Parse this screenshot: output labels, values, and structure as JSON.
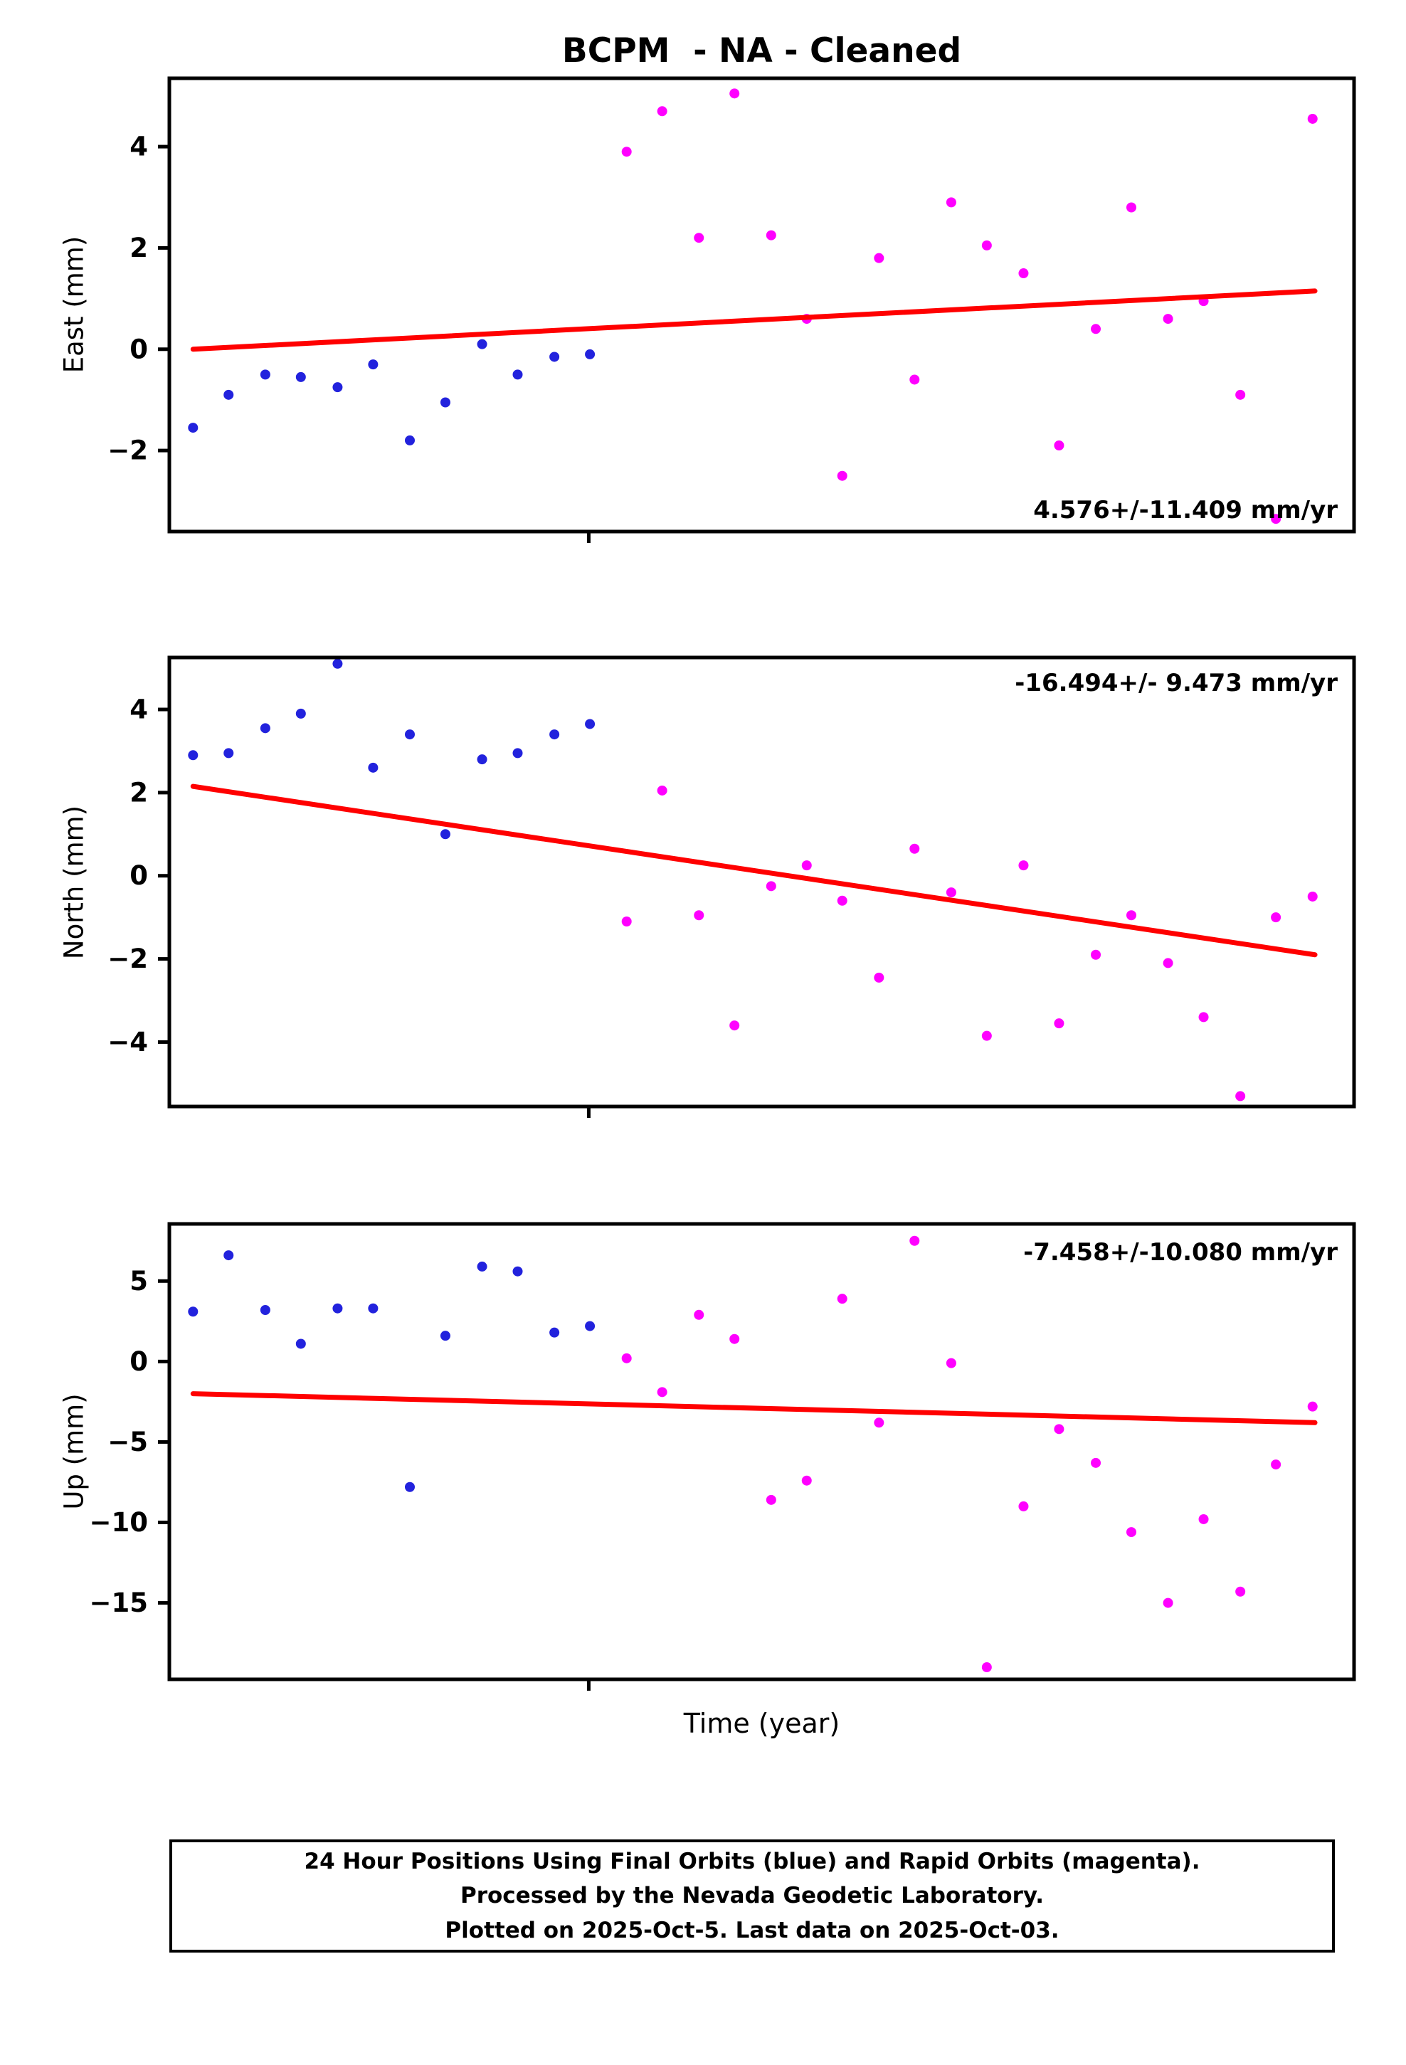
{
  "title": "BCPM  - NA - Cleaned",
  "xlabel": "Time (year)",
  "colors": {
    "final_orbits": "#2222dd",
    "rapid_orbits": "#ff00ff",
    "trend": "#ff0000",
    "frame": "#000000"
  },
  "chart_data": [
    {
      "type": "scatter",
      "ylabel": "East (mm)",
      "annotation": "4.576+/-11.409 mm/yr",
      "annotation_position": "bottom-right",
      "ylim": [
        -3.6,
        5.35
      ],
      "yticks": [
        4,
        2,
        0,
        -2
      ],
      "xticks": [
        0.354
      ],
      "grid": false,
      "series": [
        {
          "name": "final_orbits",
          "color": "#2222dd",
          "x": [
            0.02,
            0.05,
            0.081,
            0.111,
            0.142,
            0.172,
            0.203,
            0.233,
            0.264,
            0.294,
            0.325,
            0.355
          ],
          "y": [
            -1.55,
            -0.9,
            -0.5,
            -0.55,
            -0.75,
            -0.3,
            -1.8,
            -1.05,
            0.1,
            -0.5,
            -0.15,
            -0.1
          ]
        },
        {
          "name": "rapid_orbits",
          "color": "#ff00ff",
          "x": [
            0.386,
            0.416,
            0.447,
            0.477,
            0.508,
            0.538,
            0.568,
            0.599,
            0.629,
            0.66,
            0.69,
            0.721,
            0.751,
            0.782,
            0.812,
            0.843,
            0.873,
            0.904,
            0.934,
            0.965
          ],
          "y": [
            3.9,
            4.7,
            2.2,
            5.05,
            2.25,
            0.6,
            -2.5,
            1.8,
            -0.6,
            2.9,
            2.05,
            1.5,
            -1.9,
            0.4,
            2.8,
            0.6,
            0.95,
            -0.9,
            -3.35,
            4.55
          ]
        }
      ],
      "trend": {
        "x": [
          0.02,
          0.967
        ],
        "y": [
          0.0,
          1.15
        ]
      }
    },
    {
      "type": "scatter",
      "ylabel": "North (mm)",
      "annotation": "-16.494+/- 9.473 mm/yr",
      "annotation_position": "top-right",
      "ylim": [
        -5.55,
        5.25
      ],
      "yticks": [
        4,
        2,
        0,
        -2,
        -4
      ],
      "xticks": [
        0.354
      ],
      "grid": false,
      "series": [
        {
          "name": "final_orbits",
          "color": "#2222dd",
          "x": [
            0.02,
            0.05,
            0.081,
            0.111,
            0.142,
            0.172,
            0.203,
            0.233,
            0.264,
            0.294,
            0.325,
            0.355
          ],
          "y": [
            2.9,
            2.95,
            3.55,
            3.9,
            5.1,
            2.6,
            3.4,
            1.0,
            2.8,
            2.95,
            3.4,
            3.65
          ]
        },
        {
          "name": "rapid_orbits",
          "color": "#ff00ff",
          "x": [
            0.386,
            0.416,
            0.447,
            0.477,
            0.508,
            0.538,
            0.568,
            0.599,
            0.629,
            0.66,
            0.69,
            0.721,
            0.751,
            0.782,
            0.812,
            0.843,
            0.873,
            0.904,
            0.934,
            0.965
          ],
          "y": [
            -1.1,
            2.05,
            -0.95,
            -3.6,
            -0.25,
            0.25,
            -0.6,
            -2.45,
            0.65,
            -0.4,
            -3.85,
            0.25,
            -3.55,
            -1.9,
            -0.95,
            -2.1,
            -3.4,
            -5.3,
            -1.0,
            -0.5
          ]
        }
      ],
      "trend": {
        "x": [
          0.02,
          0.967
        ],
        "y": [
          2.15,
          -1.9
        ]
      }
    },
    {
      "type": "scatter",
      "ylabel": "Up (mm)",
      "annotation": "-7.458+/-10.080 mm/yr",
      "annotation_position": "top-right",
      "ylim": [
        -19.75,
        8.55
      ],
      "yticks": [
        5,
        0,
        -5,
        -10,
        -15
      ],
      "xticks": [
        0.354
      ],
      "grid": false,
      "series": [
        {
          "name": "final_orbits",
          "color": "#2222dd",
          "x": [
            0.02,
            0.05,
            0.081,
            0.111,
            0.142,
            0.172,
            0.203,
            0.233,
            0.264,
            0.294,
            0.325,
            0.355
          ],
          "y": [
            3.1,
            6.6,
            3.2,
            1.1,
            3.3,
            3.3,
            -7.8,
            1.6,
            5.9,
            5.6,
            1.8,
            2.2
          ]
        },
        {
          "name": "rapid_orbits",
          "color": "#ff00ff",
          "x": [
            0.386,
            0.416,
            0.447,
            0.477,
            0.508,
            0.538,
            0.568,
            0.599,
            0.629,
            0.66,
            0.69,
            0.721,
            0.751,
            0.782,
            0.812,
            0.843,
            0.873,
            0.904,
            0.934,
            0.965
          ],
          "y": [
            0.2,
            -1.9,
            2.9,
            1.4,
            -8.6,
            -7.4,
            3.9,
            -3.8,
            7.5,
            -0.1,
            -19.0,
            -9.0,
            -4.2,
            -6.3,
            -10.6,
            -15.0,
            -9.8,
            -14.3,
            -6.4,
            -2.8
          ]
        }
      ],
      "trend": {
        "x": [
          0.02,
          0.967
        ],
        "y": [
          -2.0,
          -3.8
        ]
      }
    }
  ],
  "footer": {
    "line1": "24 Hour Positions Using Final Orbits (blue) and Rapid Orbits (magenta).",
    "line2": "Processed by the Nevada Geodetic Laboratory.",
    "line3": "Plotted on 2025-Oct-5. Last data on 2025-Oct-03."
  }
}
